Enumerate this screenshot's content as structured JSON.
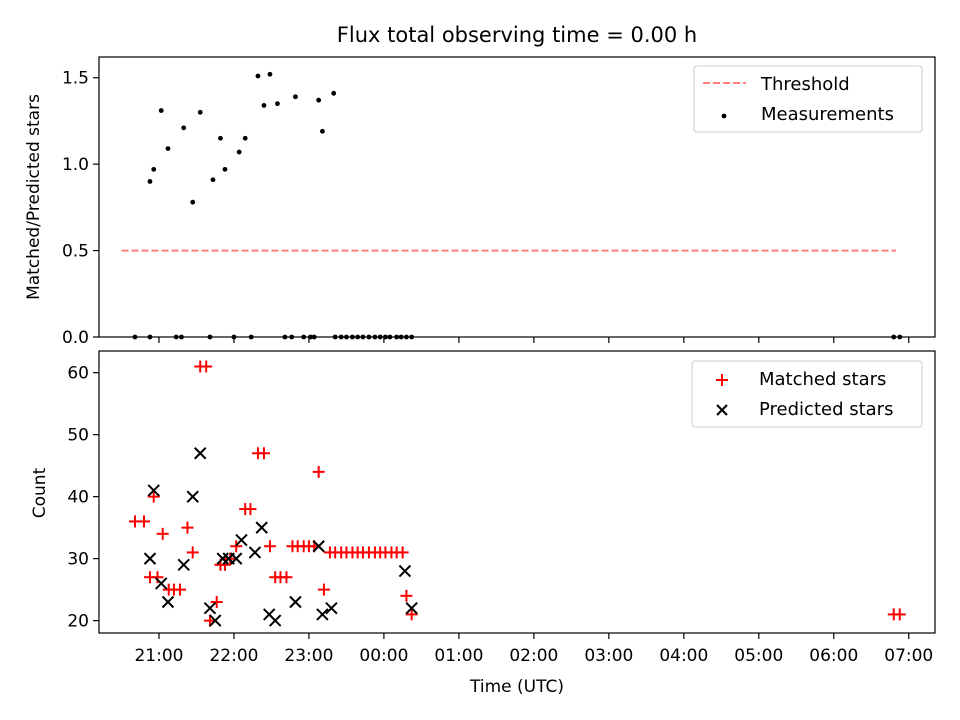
{
  "chart_data": [
    {
      "type": "scatter",
      "title": "Flux total observing time = 0.00 h",
      "xlabel": "",
      "ylabel": "Matched/Predicted stars",
      "xlim_hours": [
        20.2,
        31.35
      ],
      "ylim": [
        0,
        1.62
      ],
      "yticks": [
        0.0,
        0.5,
        1.0,
        1.5
      ],
      "yticklabels": [
        "0.0",
        "0.5",
        "1.0",
        "1.5"
      ],
      "legend": {
        "placement": "top-right",
        "entries": [
          "Threshold",
          "Measurements"
        ]
      },
      "threshold": {
        "name": "Threshold",
        "y": 0.5,
        "x_start": 20.5,
        "x_end": 30.83,
        "color": "#ff7f7f"
      },
      "measurements": {
        "name": "Measurements",
        "color": "#000000",
        "x": [
          20.88,
          20.93,
          21.03,
          21.12,
          21.33,
          21.45,
          21.55,
          21.72,
          21.82,
          21.88,
          22.07,
          22.15,
          22.32,
          22.4,
          22.48,
          22.58,
          22.82,
          23.13,
          23.18,
          23.33,
          20.68,
          20.88,
          21.23,
          21.3,
          21.68,
          22.0,
          22.23,
          22.68,
          22.77,
          22.93,
          23.02,
          23.07,
          23.35,
          23.43,
          23.5,
          23.58,
          23.65,
          23.72,
          23.8,
          23.88,
          23.95,
          24.02,
          24.08,
          24.17,
          24.23,
          24.3,
          24.37,
          30.8,
          30.88
        ],
        "y": [
          0.9,
          0.97,
          1.31,
          1.09,
          1.21,
          0.78,
          1.3,
          0.91,
          1.15,
          0.97,
          1.07,
          1.15,
          1.51,
          1.34,
          1.52,
          1.35,
          1.39,
          1.37,
          1.19,
          1.41,
          0,
          0,
          0,
          0,
          0,
          0,
          0,
          0,
          0,
          0,
          0,
          0,
          0,
          0,
          0,
          0,
          0,
          0,
          0,
          0,
          0,
          0,
          0,
          0,
          0,
          0,
          0,
          0,
          0
        ]
      }
    },
    {
      "type": "scatter",
      "title": "",
      "xlabel": "Time (UTC)",
      "ylabel": "Count",
      "xlim_hours": [
        20.2,
        31.35
      ],
      "ylim": [
        18,
        63.5
      ],
      "xticks_hours": [
        21,
        22,
        23,
        24,
        25,
        26,
        27,
        28,
        29,
        30,
        31
      ],
      "xticklabels": [
        "21:00",
        "22:00",
        "23:00",
        "00:00",
        "01:00",
        "02:00",
        "03:00",
        "04:00",
        "05:00",
        "06:00",
        "07:00"
      ],
      "yticks": [
        20,
        30,
        40,
        50,
        60
      ],
      "yticklabels": [
        "20",
        "30",
        "40",
        "50",
        "60"
      ],
      "legend": {
        "placement": "top-right",
        "entries": [
          "Matched stars",
          "Predicted stars"
        ]
      },
      "series": [
        {
          "name": "Matched stars",
          "marker": "+",
          "color": "#ff0000",
          "x": [
            20.68,
            20.8,
            20.88,
            20.93,
            20.98,
            21.05,
            21.13,
            21.2,
            21.28,
            21.38,
            21.45,
            21.55,
            21.63,
            21.68,
            21.77,
            21.82,
            21.88,
            21.95,
            22.03,
            22.15,
            22.22,
            22.32,
            22.4,
            22.48,
            22.55,
            22.62,
            22.7,
            22.78,
            22.85,
            22.93,
            23.0,
            23.07,
            23.13,
            23.2,
            23.28,
            23.35,
            23.43,
            23.5,
            23.58,
            23.65,
            23.72,
            23.8,
            23.88,
            23.95,
            24.02,
            24.1,
            24.17,
            24.25,
            24.3,
            24.37,
            30.8,
            30.88
          ],
          "y": [
            36,
            36,
            27,
            40,
            27,
            34,
            25,
            25,
            25,
            35,
            31,
            61,
            61,
            20,
            23,
            29,
            29,
            30,
            32,
            38,
            38,
            47,
            47,
            32,
            27,
            27,
            27,
            32,
            32,
            32,
            32,
            32,
            44,
            25,
            31,
            31,
            31,
            31,
            31,
            31,
            31,
            31,
            31,
            31,
            31,
            31,
            31,
            31,
            24,
            21,
            21,
            21
          ]
        },
        {
          "name": "Predicted stars",
          "marker": "x",
          "color": "#000000",
          "x": [
            20.88,
            20.93,
            21.03,
            21.12,
            21.33,
            21.45,
            21.55,
            21.68,
            21.75,
            21.85,
            21.93,
            22.03,
            22.1,
            22.28,
            22.37,
            22.47,
            22.55,
            22.82,
            23.13,
            23.18,
            23.3,
            24.28,
            24.37
          ],
          "y": [
            30,
            41,
            26,
            23,
            29,
            40,
            47,
            22,
            20,
            30,
            30,
            30,
            33,
            31,
            35,
            21,
            20,
            23,
            32,
            21,
            22,
            28,
            22
          ]
        }
      ]
    }
  ]
}
